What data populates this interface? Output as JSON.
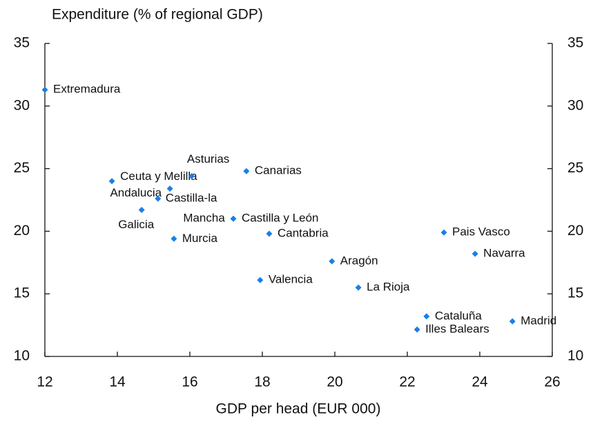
{
  "chart_data": {
    "type": "scatter",
    "title": "Expenditure (% of regional GDP)",
    "xlabel": "GDP per head (EUR 000)",
    "color": "#1a7fe8",
    "x": [
      12.0,
      13.85,
      16.05,
      15.45,
      15.12,
      14.67,
      15.56,
      17.56,
      17.2,
      18.19,
      19.92,
      17.94,
      20.65,
      23.01,
      23.87,
      22.53,
      22.27,
      24.9
    ],
    "y": [
      31.3,
      24.0,
      24.4,
      23.4,
      22.6,
      21.7,
      19.4,
      24.8,
      21.0,
      19.8,
      17.6,
      16.1,
      15.5,
      19.9,
      18.2,
      13.2,
      12.15,
      12.8
    ],
    "labels": [
      [
        "Extremadura"
      ],
      [
        "Ceuta y Melilla"
      ],
      [
        "Asturias"
      ],
      [
        "Andalucia"
      ],
      [
        "Castilla-la",
        "Mancha"
      ],
      [
        "Galicia"
      ],
      [
        "Murcia"
      ],
      [
        "Canarias"
      ],
      [
        "Castilla y León"
      ],
      [
        "Cantabria"
      ],
      [
        "Aragón"
      ],
      [
        "Valencia"
      ],
      [
        "La Rioja"
      ],
      [
        "Pais Vasco"
      ],
      [
        "Navarra"
      ],
      [
        "Cataluña"
      ],
      [
        "Illes Balears"
      ],
      [
        "Madrid"
      ]
    ],
    "xlim": [
      12,
      26
    ],
    "xticks": [
      12,
      14,
      16,
      18,
      20,
      22,
      24,
      26
    ],
    "ylim": [
      10,
      35
    ],
    "yticks": [
      10,
      15,
      20,
      25,
      30,
      35
    ],
    "y2lim": [
      10,
      35
    ],
    "y2ticks": [
      10,
      15,
      20,
      25,
      30,
      35
    ],
    "grid": false
  }
}
